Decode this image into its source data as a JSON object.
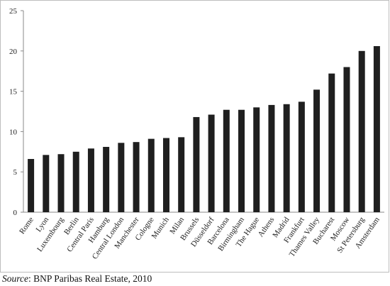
{
  "chart_data": {
    "type": "bar",
    "categories": [
      "Rome",
      "Lyon",
      "Luxembourg",
      "Berlin",
      "Central Paris",
      "Hamburg",
      "Central London",
      "Manchester",
      "Cologne",
      "Munich",
      "Milan",
      "Brussels",
      "Düsseldorf",
      "Barcelona",
      "Birmingham",
      "The Hague",
      "Athens",
      "Madrid",
      "Frankfurt",
      "Thames Valley",
      "Bucharest",
      "Moscow",
      "St Petersburg",
      "Amsterdam"
    ],
    "values": [
      6.6,
      7.1,
      7.2,
      7.5,
      7.9,
      8.1,
      8.6,
      8.7,
      9.1,
      9.2,
      9.3,
      11.8,
      12.1,
      12.7,
      12.7,
      13.0,
      13.3,
      13.4,
      13.7,
      15.2,
      17.2,
      18.0,
      20.0,
      20.6
    ],
    "ylim": [
      0,
      25
    ],
    "yticks": [
      "0",
      "5",
      "10",
      "15",
      "20",
      "25"
    ],
    "grid": false,
    "bar_color": "#1f1f1f",
    "axis_color": "#8a8a8a"
  },
  "source": {
    "label": "Source",
    "text": ": BNP Paribas Real Estate, 2010"
  }
}
